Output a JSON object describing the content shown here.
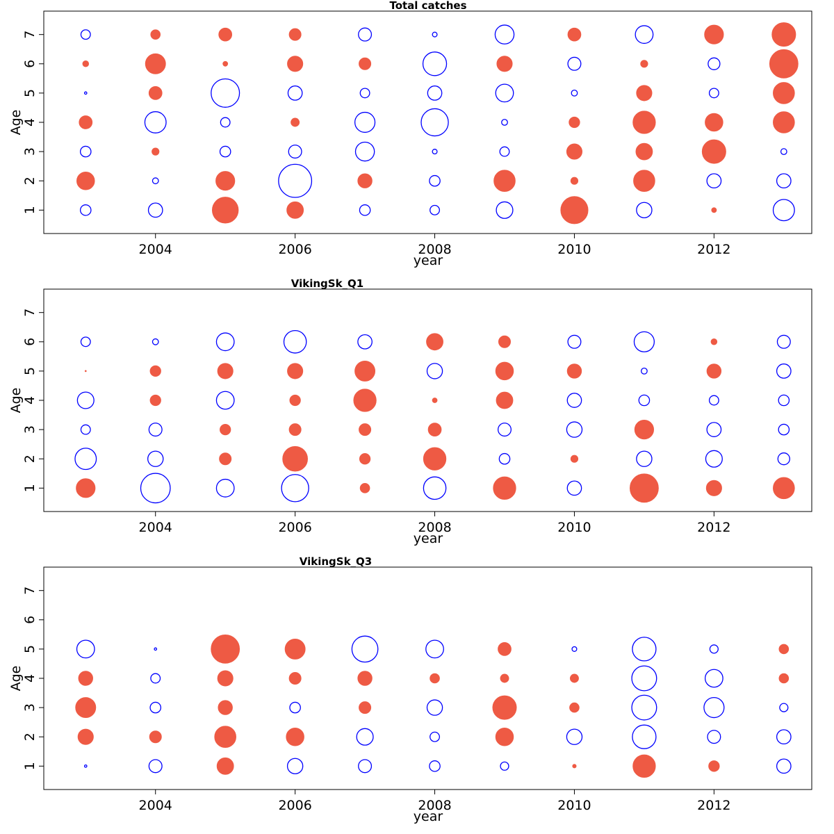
{
  "colors": {
    "positive": "#EE5A44",
    "negative": "#0000FF"
  },
  "chart_data": [
    {
      "type": "scatter",
      "title": "Total catches",
      "xlabel": "year",
      "ylabel": "Age",
      "x_ticks": [
        2004,
        2006,
        2008,
        2010,
        2012
      ],
      "y_ticks": [
        1,
        2,
        3,
        4,
        5,
        6,
        7
      ],
      "xlim": [
        2002.4,
        2013.4
      ],
      "ylim": [
        0.2,
        7.8
      ],
      "years": [
        2003,
        2004,
        2005,
        2006,
        2007,
        2008,
        2009,
        2010,
        2011,
        2012,
        2013
      ],
      "ages": [
        1,
        2,
        3,
        4,
        5,
        6,
        7
      ],
      "residuals": [
        [
          -0.45,
          0.75,
          -0.45,
          0.55,
          -0.1,
          0.25,
          -0.4
        ],
        [
          -0.6,
          -0.25,
          0.3,
          -0.9,
          0.55,
          0.85,
          0.4
        ],
        [
          1.1,
          0.8,
          -0.45,
          -0.4,
          -1.2,
          0.2,
          0.55
        ],
        [
          0.7,
          -1.4,
          -0.55,
          0.35,
          -0.6,
          0.65,
          0.5
        ],
        [
          -0.45,
          0.6,
          -0.8,
          -0.85,
          -0.4,
          0.5,
          -0.55
        ],
        [
          -0.4,
          -0.45,
          -0.2,
          -1.15,
          -0.6,
          -1.0,
          -0.2
        ],
        [
          -0.7,
          0.9,
          -0.4,
          -0.25,
          -0.75,
          0.65,
          -0.8
        ],
        [
          1.15,
          0.3,
          0.65,
          0.45,
          -0.25,
          -0.55,
          0.55
        ],
        [
          -0.65,
          0.9,
          0.7,
          0.95,
          0.65,
          0.3,
          -0.75
        ],
        [
          0.2,
          -0.6,
          1.0,
          0.75,
          -0.4,
          -0.5,
          0.8
        ],
        [
          -0.9,
          -0.6,
          -0.25,
          0.9,
          0.9,
          1.2,
          1.0
        ]
      ]
    },
    {
      "type": "scatter",
      "title": "VikingSk_Q1",
      "xlabel": "year",
      "ylabel": "Age",
      "x_ticks": [
        2004,
        2006,
        2008,
        2010,
        2012
      ],
      "y_ticks": [
        1,
        2,
        3,
        4,
        5,
        6,
        7
      ],
      "xlim": [
        2002.4,
        2013.4
      ],
      "ylim": [
        0.2,
        7.8
      ],
      "years": [
        2003,
        2004,
        2005,
        2006,
        2007,
        2008,
        2009,
        2010,
        2011,
        2012,
        2013
      ],
      "ages": [
        1,
        2,
        3,
        4,
        5,
        6
      ],
      "residuals": [
        [
          0.8,
          -0.9,
          -0.4,
          -0.7,
          0.05,
          -0.4
        ],
        [
          -1.25,
          -0.65,
          -0.55,
          0.45,
          0.45,
          -0.25
        ],
        [
          -0.75,
          0.5,
          0.45,
          -0.75,
          0.65,
          -0.75
        ],
        [
          -1.15,
          1.05,
          0.5,
          0.45,
          0.65,
          -0.95
        ],
        [
          0.4,
          0.45,
          0.5,
          0.95,
          0.85,
          -0.6
        ],
        [
          -0.95,
          0.95,
          0.55,
          0.2,
          -0.65,
          0.7
        ],
        [
          0.95,
          -0.45,
          -0.55,
          0.7,
          0.75,
          0.5
        ],
        [
          -0.6,
          0.3,
          -0.65,
          -0.6,
          0.6,
          -0.55
        ],
        [
          1.2,
          -0.65,
          0.8,
          -0.45,
          -0.25,
          -0.85
        ],
        [
          0.65,
          -0.7,
          -0.6,
          -0.4,
          0.6,
          0.25
        ],
        [
          0.9,
          -0.5,
          -0.45,
          -0.45,
          -0.6,
          -0.55
        ]
      ]
    },
    {
      "type": "scatter",
      "title": "VikingSk_Q3",
      "xlabel": "year",
      "ylabel": "Age",
      "x_ticks": [
        2004,
        2006,
        2008,
        2010,
        2012
      ],
      "y_ticks": [
        1,
        2,
        3,
        4,
        5,
        6,
        7
      ],
      "xlim": [
        2002.4,
        2013.4
      ],
      "ylim": [
        0.2,
        7.8
      ],
      "years": [
        2003,
        2004,
        2005,
        2006,
        2007,
        2008,
        2009,
        2010,
        2011,
        2012,
        2013
      ],
      "ages": [
        1,
        2,
        3,
        4,
        5
      ],
      "residuals": [
        [
          -0.1,
          0.65,
          0.85,
          0.6,
          -0.75
        ],
        [
          -0.55,
          0.5,
          -0.45,
          -0.4,
          -0.1
        ],
        [
          0.7,
          0.9,
          0.6,
          0.65,
          1.2
        ],
        [
          -0.65,
          0.75,
          -0.45,
          0.5,
          0.85
        ],
        [
          -0.55,
          -0.7,
          0.5,
          0.6,
          -1.1
        ],
        [
          -0.45,
          -0.4,
          -0.65,
          0.4,
          -0.75
        ],
        [
          -0.35,
          0.75,
          1.0,
          0.35,
          0.55
        ],
        [
          0.15,
          -0.65,
          0.4,
          0.35,
          -0.2
        ],
        [
          0.95,
          -1.0,
          -1.05,
          -1.05,
          -1.0
        ],
        [
          0.45,
          -0.55,
          -0.85,
          -0.75,
          -0.35
        ],
        [
          -0.6,
          -0.6,
          -0.35,
          0.4,
          0.4
        ]
      ]
    }
  ]
}
